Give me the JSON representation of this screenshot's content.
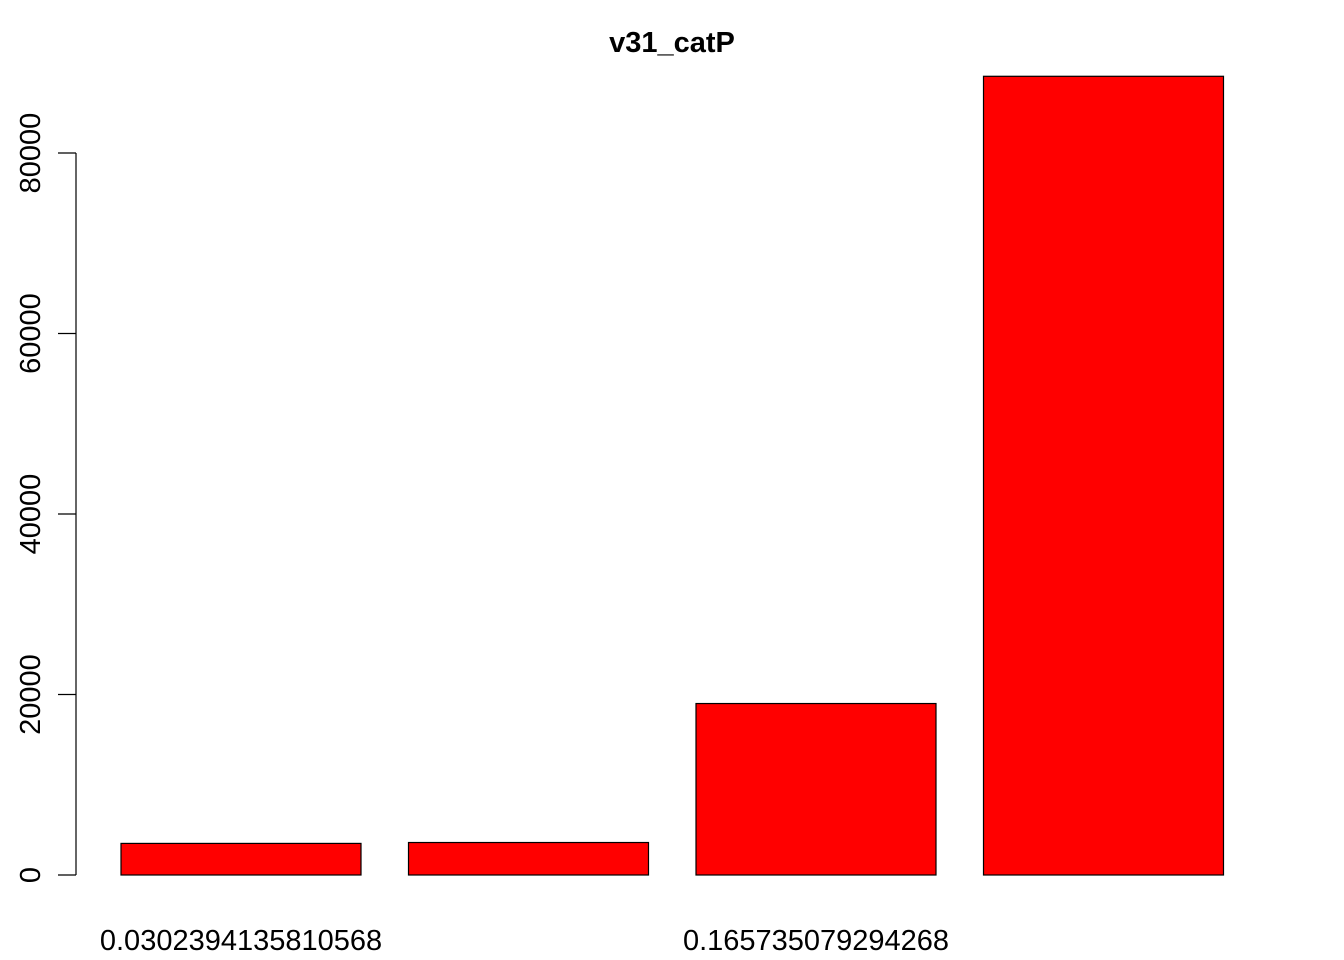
{
  "chart_data": {
    "type": "bar",
    "title": "v31_catP",
    "xlabel": "",
    "ylabel": "",
    "categories": [
      "0.0302394135810568",
      "",
      "0.165735079294268",
      ""
    ],
    "values": [
      3500,
      3600,
      19000,
      88500
    ],
    "ylim": [
      0,
      88500
    ],
    "yticks": [
      0,
      20000,
      40000,
      60000,
      80000
    ],
    "ytick_labels": [
      "0",
      "20000",
      "40000",
      "60000",
      "80000"
    ],
    "bar_color": "#ff0000",
    "bar_border_color": "#000000",
    "grid": false,
    "legend": "none"
  }
}
